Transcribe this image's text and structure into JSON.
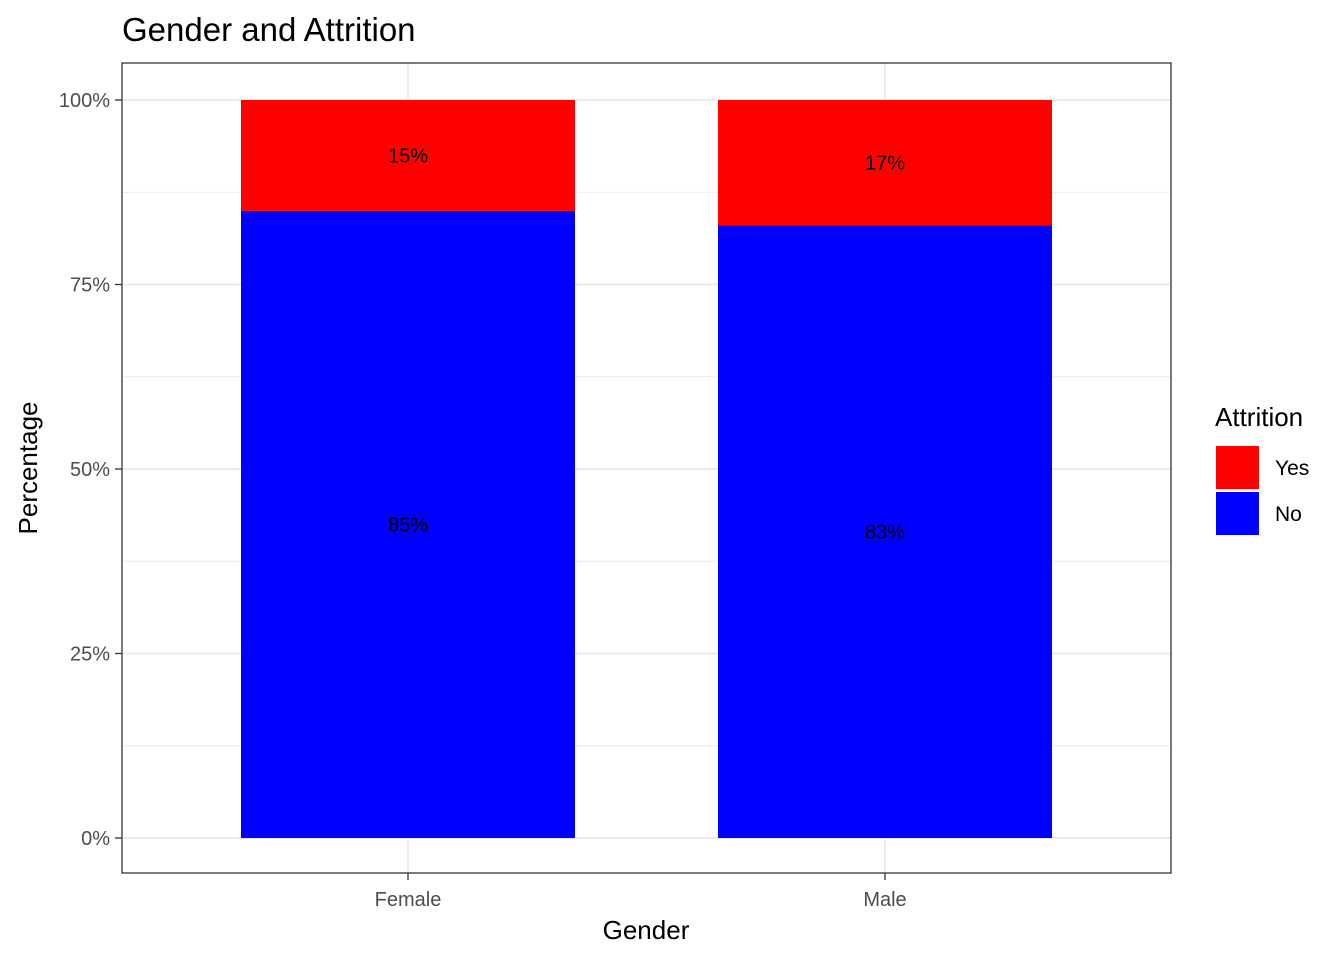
{
  "chart_data": {
    "type": "bar",
    "stacked": true,
    "title": "Gender and Attrition",
    "xlabel": "Gender",
    "ylabel": "Percentage",
    "categories": [
      "Female",
      "Male"
    ],
    "series": [
      {
        "name": "No",
        "color": "#0000ff",
        "values": [
          85,
          83
        ],
        "labels": [
          "85%",
          "83%"
        ]
      },
      {
        "name": "Yes",
        "color": "#ff0000",
        "values": [
          15,
          17
        ],
        "labels": [
          "15%",
          "17%"
        ]
      }
    ],
    "ylim": [
      0,
      100
    ],
    "yticks": [
      0,
      25,
      50,
      75,
      100
    ],
    "ytick_labels": [
      "0%",
      "25%",
      "50%",
      "75%",
      "100%"
    ],
    "grid": true,
    "legend": {
      "title": "Attrition",
      "placement": "right",
      "items": [
        {
          "label": "Yes",
          "color": "#ff0000"
        },
        {
          "label": "No",
          "color": "#0000ff"
        }
      ]
    }
  }
}
